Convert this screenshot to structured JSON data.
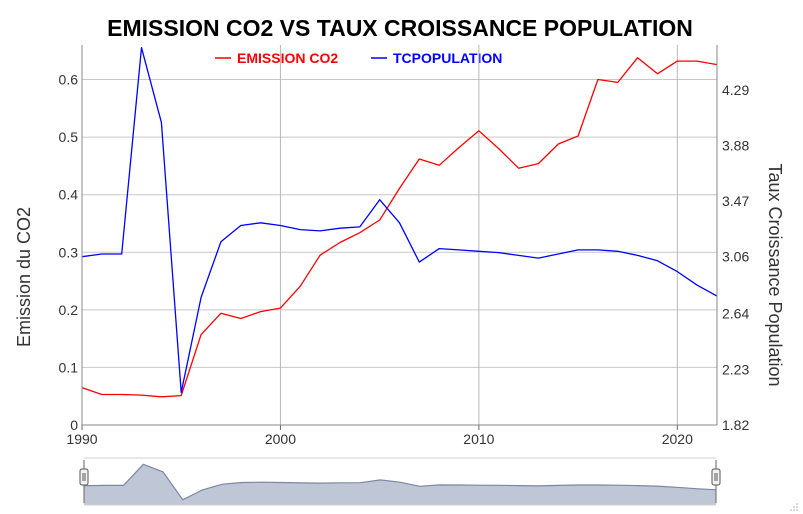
{
  "chart_data": {
    "type": "line",
    "title": "EMISSION CO2 VS TAUX CROISSANCE POPULATION",
    "ylabel": "Emission du CO2",
    "y2label": "Taux Croissance Population",
    "x_ticks": [
      "1990",
      "2000",
      "2010",
      "2020"
    ],
    "y_ticks": [
      "0",
      "0.1",
      "0.2",
      "0.3",
      "0.4",
      "0.5",
      "0.6"
    ],
    "y2_ticks": [
      "1.82",
      "2.23",
      "2.64",
      "3.06",
      "3.47",
      "3.88",
      "4.29"
    ],
    "xlim": [
      1990,
      2022
    ],
    "ylim": [
      0,
      0.66
    ],
    "y2lim": [
      1.82,
      4.62
    ],
    "grid": "vertical and horizontal",
    "legend_position": "top",
    "x": [
      1990,
      1991,
      1992,
      1993,
      1994,
      1995,
      1996,
      1997,
      1998,
      1999,
      2000,
      2001,
      2002,
      2003,
      2004,
      2005,
      2006,
      2007,
      2008,
      2009,
      2010,
      2011,
      2012,
      2013,
      2014,
      2015,
      2016,
      2017,
      2018,
      2019,
      2020,
      2021,
      2022
    ],
    "series": [
      {
        "name": "EMISSION CO2",
        "axis": "left",
        "color": "#ff0000",
        "values": [
          0.065,
          0.053,
          0.053,
          0.052,
          0.049,
          0.051,
          0.157,
          0.194,
          0.185,
          0.197,
          0.203,
          0.241,
          0.295,
          0.317,
          0.334,
          0.356,
          0.411,
          0.462,
          0.451,
          0.482,
          0.511,
          0.48,
          0.446,
          0.454,
          0.488,
          0.502,
          0.6,
          0.595,
          0.638,
          0.61,
          0.632,
          0.632,
          0.626
        ]
      },
      {
        "name": "TCPOPULATION",
        "axis": "right",
        "color": "#0000ff",
        "values": [
          3.06,
          3.08,
          3.08,
          4.6,
          4.05,
          2.06,
          2.76,
          3.17,
          3.29,
          3.31,
          3.29,
          3.26,
          3.25,
          3.27,
          3.28,
          3.48,
          3.31,
          3.02,
          3.12,
          3.11,
          3.1,
          3.09,
          3.07,
          3.05,
          3.08,
          3.11,
          3.11,
          3.1,
          3.07,
          3.03,
          2.95,
          2.85,
          2.77
        ]
      }
    ]
  },
  "navigator": {
    "series_color": "#7a88a8",
    "fill_color": "#bfc6d6"
  },
  "resize_icon": "resize-grip-icon"
}
